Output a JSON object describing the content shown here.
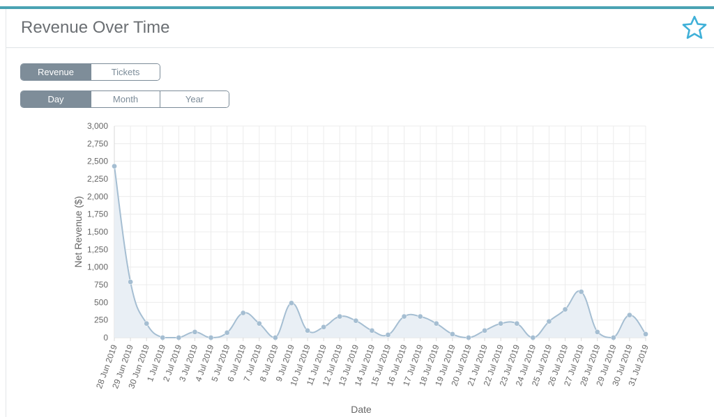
{
  "header": {
    "title": "Revenue Over Time",
    "favorite_icon": "star-icon"
  },
  "metric_toggle": {
    "options": [
      "Revenue",
      "Tickets"
    ],
    "selected": "Revenue"
  },
  "period_toggle": {
    "options": [
      "Day",
      "Month",
      "Year"
    ],
    "selected": "Day"
  },
  "colors": {
    "accent": "#4aa3b3",
    "series_line": "#a5bed2",
    "series_fill": "#e9eff5",
    "active_toggle": "#7e8d99"
  },
  "chart_data": {
    "type": "area",
    "title": "",
    "xlabel": "Date",
    "ylabel": "Net Revenue ($)",
    "ylim": [
      0,
      3000
    ],
    "yticks": [
      "0",
      "250",
      "500",
      "750",
      "1,000",
      "1,250",
      "1,500",
      "1,750",
      "2,000",
      "2,250",
      "2,500",
      "2,750",
      "3,000"
    ],
    "grid": true,
    "categories": [
      "28 Jun 2019",
      "29 Jun 2019",
      "30 Jun 2019",
      "1 Jul 2019",
      "2 Jul 2019",
      "3 Jul 2019",
      "4 Jul 2019",
      "5 Jul 2019",
      "6 Jul 2019",
      "7 Jul 2019",
      "8 Jul 2019",
      "9 Jul 2019",
      "10 Jul 2019",
      "11 Jul 2019",
      "12 Jul 2019",
      "13 Jul 2019",
      "14 Jul 2019",
      "15 Jul 2019",
      "16 Jul 2019",
      "17 Jul 2019",
      "18 Jul 2019",
      "19 Jul 2019",
      "20 Jul 2019",
      "21 Jul 2019",
      "22 Jul 2019",
      "23 Jul 2019",
      "24 Jul 2019",
      "25 Jul 2019",
      "26 Jul 2019",
      "27 Jul 2019",
      "28 Jul 2019",
      "29 Jul 2019",
      "30 Jul 2019",
      "31 Jul 2019"
    ],
    "series": [
      {
        "values": [
          2430,
          790,
          200,
          0,
          0,
          80,
          0,
          70,
          350,
          200,
          0,
          490,
          100,
          150,
          300,
          240,
          100,
          40,
          300,
          300,
          200,
          50,
          0,
          100,
          200,
          200,
          0,
          230,
          400,
          650,
          80,
          0,
          320,
          50
        ]
      }
    ]
  }
}
